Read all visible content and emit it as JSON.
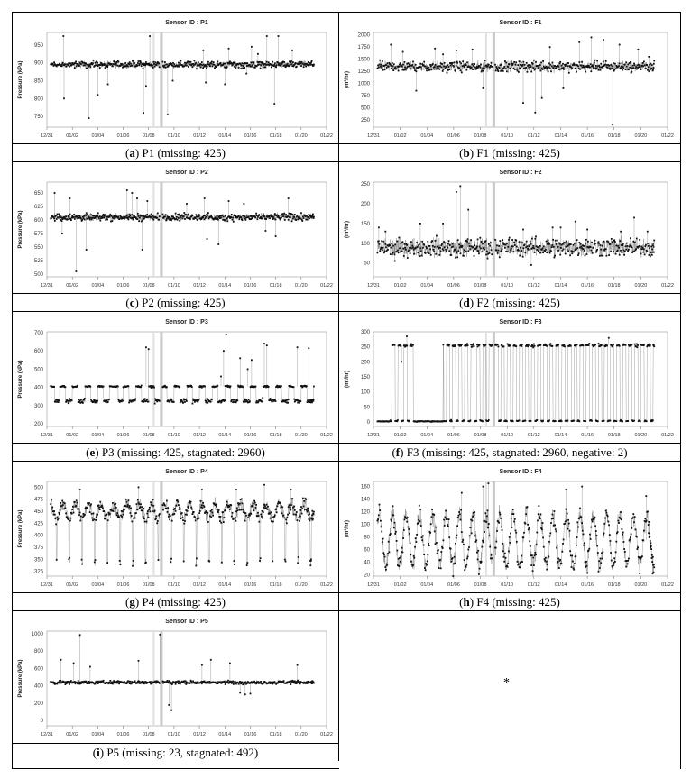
{
  "figure": {
    "empty_cell_mark": "*",
    "x_ticks": [
      "12/31",
      "01/02",
      "01/04",
      "01/06",
      "01/08",
      "01/10",
      "01/12",
      "01/14",
      "01/16",
      "01/18",
      "01/20",
      "01/22"
    ],
    "missing_band_days": [
      8.9,
      9.1
    ]
  },
  "chart_data": [
    {
      "id": "P1",
      "type": "scatter",
      "title": "Sensor ID : P1",
      "ylabel": "Pressure (kPa)",
      "ylim": [
        720,
        985
      ],
      "yticks": [
        750,
        800,
        850,
        900,
        950
      ],
      "caption": {
        "letter": "a",
        "text": " P1 (missing: 425)"
      },
      "profile": {
        "kind": "flat",
        "base": 895,
        "noise": 7,
        "spikes": [
          [
            1.3,
            975
          ],
          [
            1.35,
            800
          ],
          [
            3.3,
            745
          ],
          [
            4.0,
            810
          ],
          [
            4.8,
            840
          ],
          [
            7.6,
            760
          ],
          [
            7.8,
            835
          ],
          [
            8.1,
            975
          ],
          [
            9.5,
            755
          ],
          [
            9.9,
            850
          ],
          [
            12.3,
            935
          ],
          [
            12.5,
            845
          ],
          [
            14.0,
            840
          ],
          [
            14.3,
            940
          ],
          [
            15.7,
            870
          ],
          [
            16.1,
            945
          ],
          [
            16.6,
            925
          ],
          [
            17.3,
            975
          ],
          [
            17.9,
            785
          ],
          [
            18.2,
            975
          ],
          [
            19.3,
            935
          ]
        ]
      }
    },
    {
      "id": "F1",
      "type": "scatter",
      "title": "Sensor ID : F1",
      "ylabel": "(m³/hr)",
      "ylim": [
        100,
        2050
      ],
      "yticks": [
        250,
        500,
        750,
        1000,
        1250,
        1500,
        1750,
        2000
      ],
      "caption": {
        "letter": "b",
        "text": " F1 (missing: 425)"
      },
      "profile": {
        "kind": "flat",
        "base": 1350,
        "noise": 80,
        "spikes": [
          [
            1.3,
            1800
          ],
          [
            2.2,
            1650
          ],
          [
            3.2,
            850
          ],
          [
            4.6,
            1720
          ],
          [
            5.2,
            1600
          ],
          [
            6.2,
            1680
          ],
          [
            7.4,
            1700
          ],
          [
            8.2,
            900
          ],
          [
            11.2,
            600
          ],
          [
            12.1,
            400
          ],
          [
            12.6,
            700
          ],
          [
            13.2,
            1750
          ],
          [
            14.2,
            900
          ],
          [
            15.4,
            1850
          ],
          [
            16.3,
            1950
          ],
          [
            17.2,
            1900
          ],
          [
            17.9,
            150
          ],
          [
            18.4,
            1800
          ],
          [
            19.8,
            1700
          ],
          [
            20.6,
            1550
          ]
        ]
      }
    },
    {
      "id": "P2",
      "type": "scatter",
      "title": "Sensor ID : P2",
      "ylabel": "Pressure (kPa)",
      "ylim": [
        495,
        670
      ],
      "yticks": [
        500,
        525,
        550,
        575,
        600,
        625,
        650
      ],
      "caption": {
        "letter": "c",
        "text": " P2 (missing: 425)"
      },
      "profile": {
        "kind": "flat",
        "base": 605,
        "noise": 5,
        "spikes": [
          [
            0.6,
            650
          ],
          [
            1.2,
            575
          ],
          [
            1.8,
            640
          ],
          [
            2.3,
            505
          ],
          [
            3.1,
            545
          ],
          [
            6.3,
            655
          ],
          [
            6.7,
            650
          ],
          [
            7.1,
            640
          ],
          [
            7.5,
            545
          ],
          [
            7.9,
            635
          ],
          [
            9.4,
            600
          ],
          [
            11.0,
            630
          ],
          [
            12.4,
            640
          ],
          [
            12.6,
            565
          ],
          [
            13.5,
            555
          ],
          [
            14.3,
            635
          ],
          [
            15.5,
            630
          ],
          [
            17.2,
            580
          ],
          [
            18.0,
            570
          ],
          [
            19.0,
            640
          ]
        ]
      }
    },
    {
      "id": "F2",
      "type": "scatter",
      "title": "Sensor ID : F2",
      "ylabel": "(m³/hr)",
      "ylim": [
        15,
        255
      ],
      "yticks": [
        50,
        100,
        150,
        200,
        250
      ],
      "caption": {
        "letter": "d",
        "text": " F2 (missing: 425)"
      },
      "profile": {
        "kind": "flat",
        "base": 90,
        "noise": 18,
        "spikes": [
          [
            0.4,
            140
          ],
          [
            0.9,
            130
          ],
          [
            1.6,
            55
          ],
          [
            3.5,
            150
          ],
          [
            5.2,
            150
          ],
          [
            6.2,
            230
          ],
          [
            6.5,
            245
          ],
          [
            7.1,
            185
          ],
          [
            7.8,
            110
          ],
          [
            11.2,
            135
          ],
          [
            11.8,
            45
          ],
          [
            13.4,
            140
          ],
          [
            14.0,
            140
          ],
          [
            15.1,
            155
          ],
          [
            16.0,
            135
          ],
          [
            18.5,
            130
          ],
          [
            19.5,
            165
          ],
          [
            20.5,
            130
          ]
        ]
      }
    },
    {
      "id": "P3",
      "type": "scatter",
      "title": "Sensor ID : P3",
      "ylabel": "Pressure (kPa)",
      "ylim": [
        185,
        705
      ],
      "yticks": [
        200,
        300,
        400,
        500,
        600,
        700
      ],
      "caption": {
        "letter": "e",
        "text": " P3 (missing: 425, stagnated: 2960)"
      },
      "profile": {
        "kind": "step",
        "high": 405,
        "low": 325,
        "noise": 10,
        "spikes": [
          [
            7.8,
            620
          ],
          [
            8.0,
            610
          ],
          [
            13.9,
            600
          ],
          [
            14.1,
            690
          ],
          [
            15.2,
            560
          ],
          [
            16.1,
            550
          ],
          [
            17.1,
            640
          ],
          [
            17.3,
            630
          ],
          [
            19.7,
            620
          ],
          [
            20.6,
            615
          ],
          [
            13.7,
            460
          ],
          [
            15.8,
            500
          ]
        ]
      }
    },
    {
      "id": "F3",
      "type": "scatter",
      "title": "Sensor ID : F3",
      "ylabel": "(m³/hr)",
      "ylim": [
        -15,
        300
      ],
      "yticks": [
        0,
        50,
        100,
        150,
        200,
        250,
        300
      ],
      "caption": {
        "letter": "f",
        "text": " F3 (missing: 425, stagnated: 2960, negative: 2)"
      },
      "profile": {
        "kind": "switch",
        "high": 255,
        "low": 2,
        "noise": 6,
        "spikes": [
          [
            2.5,
            285
          ],
          [
            17.6,
            280
          ],
          [
            2.1,
            200
          ]
        ]
      }
    },
    {
      "id": "P4",
      "type": "scatter",
      "title": "Sensor ID : P4",
      "ylabel": "Pressure (kPa)",
      "ylim": [
        315,
        512
      ],
      "yticks": [
        325,
        350,
        375,
        400,
        425,
        450,
        475,
        500
      ],
      "caption": {
        "letter": "g",
        "text": " P4 (missing: 425)"
      },
      "profile": {
        "kind": "daily",
        "base": 450,
        "amp": 15,
        "dip": 345,
        "noise": 10,
        "spikes": [
          [
            2.6,
            495
          ],
          [
            7.2,
            500
          ],
          [
            12.2,
            495
          ],
          [
            14.9,
            495
          ],
          [
            17.1,
            505
          ],
          [
            19.2,
            495
          ]
        ]
      }
    },
    {
      "id": "F4",
      "type": "scatter",
      "title": "Sensor ID : F4",
      "ylabel": "(m³/hr)",
      "ylim": [
        18,
        168
      ],
      "yticks": [
        20,
        40,
        60,
        80,
        100,
        120,
        140,
        160
      ],
      "caption": {
        "letter": "h",
        "text": " F4 (missing: 425)"
      },
      "profile": {
        "kind": "sine",
        "base": 75,
        "amp": 40,
        "noise": 12,
        "spikes": [
          [
            6.6,
            150
          ],
          [
            8.2,
            160
          ],
          [
            8.6,
            165
          ],
          [
            14.4,
            155
          ],
          [
            15.6,
            160
          ],
          [
            20.4,
            145
          ]
        ]
      }
    },
    {
      "id": "P5",
      "type": "scatter",
      "title": "Sensor ID : P5",
      "ylabel": "Pressure (kPa)",
      "ylim": [
        -60,
        1030
      ],
      "yticks": [
        0,
        200,
        400,
        600,
        800,
        1000
      ],
      "caption": {
        "letter": "i",
        "text": " P5 (missing: 23, stagnated: 492)"
      },
      "profile": {
        "kind": "flat",
        "base": 440,
        "noise": 15,
        "spikes": [
          [
            1.1,
            700
          ],
          [
            2.1,
            660
          ],
          [
            2.6,
            985
          ],
          [
            3.4,
            620
          ],
          [
            7.2,
            690
          ],
          [
            8.9,
            990
          ],
          [
            9.6,
            180
          ],
          [
            9.8,
            120
          ],
          [
            12.2,
            640
          ],
          [
            12.9,
            700
          ],
          [
            14.4,
            660
          ],
          [
            19.7,
            640
          ],
          [
            15.2,
            320
          ],
          [
            15.6,
            300
          ],
          [
            16.0,
            310
          ]
        ]
      }
    }
  ]
}
